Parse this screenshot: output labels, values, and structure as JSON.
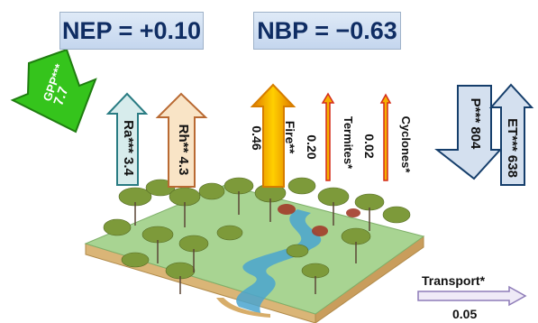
{
  "balances": {
    "nep": "NEP = +0.10",
    "nbp": "NBP = −0.63"
  },
  "fluxes": {
    "gpp": {
      "name": "GPP***",
      "value": "7.7"
    },
    "ra": {
      "label": "Ra*** 3.4"
    },
    "rh": {
      "label": "Rh** 4.3"
    },
    "fire": {
      "name": "Fire**",
      "value": "0.46"
    },
    "termites": {
      "name": "Termites*",
      "value": "0.20"
    },
    "cyclones": {
      "name": "Cyclones*",
      "value": "0.02"
    },
    "precip": {
      "label": "P*** 804"
    },
    "et": {
      "label": "ET*** 638"
    },
    "transport": {
      "name": "Transport*",
      "value": "0.05"
    }
  },
  "colors": {
    "balance_box": "#c9daf0",
    "balance_text": "#0f2d63",
    "gpp": "#35c41c",
    "ra": "#d7ecec",
    "rh": "#f9e4c6",
    "fire": "#f6b000",
    "termites": "#d42c1a",
    "precip_et": "#d4e0ef",
    "transport": "#9d8cc4",
    "grass": "#9fcf8c",
    "soil": "#e8c48a",
    "river": "#4aa5cf"
  }
}
